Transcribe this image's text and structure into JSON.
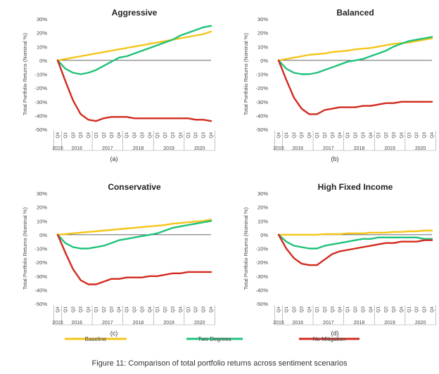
{
  "figure": {
    "caption": "Figure 11: Comparison of total portfolio returns across sentiment scenarios",
    "colors": {
      "baseline": "#f5c518",
      "two_degrees": "#1ec27a",
      "no_mitigation": "#d22a1e"
    }
  },
  "legend": [
    {
      "name": "Baseline",
      "key": "baseline"
    },
    {
      "name": "Two Degrees",
      "key": "two_degrees"
    },
    {
      "name": "No Mitigation",
      "key": "no_mitigation"
    }
  ],
  "chart_data": [
    {
      "type": "line",
      "title": "Aggressive",
      "panel_label": "(a)",
      "ylabel": "Total Portfolio Returns (Nominal %)",
      "ylim": [
        -50,
        30
      ],
      "yticks": [
        "30%",
        "20%",
        "10%",
        "0%",
        "-10%",
        "-20%",
        "-30%",
        "-40%",
        "-50%"
      ],
      "x": [
        "Q4",
        "Q1",
        "Q2",
        "Q3",
        "Q4",
        "Q1",
        "Q2",
        "Q3",
        "Q4",
        "Q1",
        "Q2",
        "Q3",
        "Q4",
        "Q1",
        "Q2",
        "Q3",
        "Q4",
        "Q1",
        "Q2",
        "Q3",
        "Q4"
      ],
      "years": [
        "2015",
        "2016",
        "2017",
        "2018",
        "2019",
        "2020"
      ],
      "series": [
        {
          "name": "Baseline",
          "key": "baseline",
          "values": [
            0,
            1,
            2,
            3,
            4,
            5,
            6,
            7,
            8,
            9,
            10,
            11,
            12,
            13,
            14,
            15,
            16,
            17,
            18,
            19,
            21
          ]
        },
        {
          "name": "Two Degrees",
          "key": "two_degrees",
          "values": [
            0,
            -6,
            -9,
            -10,
            -9,
            -7,
            -4,
            -1,
            2,
            3,
            5,
            7,
            9,
            11,
            13,
            15,
            18,
            20,
            22,
            24,
            25
          ]
        },
        {
          "name": "No Mitigation",
          "key": "no_mitigation",
          "values": [
            0,
            -15,
            -29,
            -39,
            -43,
            -44,
            -42,
            -41,
            -41,
            -41,
            -42,
            -42,
            -42,
            -42,
            -42,
            -42,
            -42,
            -42,
            -43,
            -43,
            -44
          ]
        }
      ]
    },
    {
      "type": "line",
      "title": "Balanced",
      "panel_label": "(b)",
      "ylabel": "Total Portfolio Returns (Nominal %)",
      "ylim": [
        -50,
        30
      ],
      "yticks": [
        "30%",
        "20%",
        "10%",
        "0%",
        "-10%",
        "-20%",
        "-30%",
        "-40%",
        "-50%"
      ],
      "x": [
        "Q4",
        "Q1",
        "Q2",
        "Q3",
        "Q4",
        "Q1",
        "Q2",
        "Q3",
        "Q4",
        "Q1",
        "Q2",
        "Q3",
        "Q4",
        "Q1",
        "Q2",
        "Q3",
        "Q4",
        "Q1",
        "Q2",
        "Q3",
        "Q4"
      ],
      "years": [
        "2015",
        "2016",
        "2017",
        "2018",
        "2019",
        "2020"
      ],
      "series": [
        {
          "name": "Baseline",
          "key": "baseline",
          "values": [
            0,
            1,
            2,
            3,
            4,
            4.5,
            5,
            6,
            6.5,
            7,
            8,
            8.5,
            9,
            10,
            11,
            12,
            12.5,
            13,
            14,
            15,
            16
          ]
        },
        {
          "name": "Two Degrees",
          "key": "two_degrees",
          "values": [
            0,
            -6,
            -9,
            -10,
            -10,
            -9,
            -7,
            -5,
            -3,
            -1,
            0,
            1,
            3,
            5,
            7,
            10,
            12,
            14,
            15,
            16,
            17
          ]
        },
        {
          "name": "No Mitigation",
          "key": "no_mitigation",
          "values": [
            0,
            -14,
            -27,
            -35,
            -39,
            -39,
            -36,
            -35,
            -34,
            -34,
            -34,
            -33,
            -33,
            -32,
            -31,
            -31,
            -30,
            -30,
            -30,
            -30,
            -30
          ]
        }
      ]
    },
    {
      "type": "line",
      "title": "Conservative",
      "panel_label": "(c)",
      "ylabel": "Total Portfolio Returns (Nominal %)",
      "ylim": [
        -50,
        30
      ],
      "yticks": [
        "30%",
        "20%",
        "10%",
        "0%",
        "-10%",
        "-20%",
        "-30%",
        "-40%",
        "-50%"
      ],
      "x": [
        "Q4",
        "Q1",
        "Q2",
        "Q3",
        "Q4",
        "Q1",
        "Q2",
        "Q3",
        "Q4",
        "Q1",
        "Q2",
        "Q3",
        "Q4",
        "Q1",
        "Q2",
        "Q3",
        "Q4",
        "Q1",
        "Q2",
        "Q3",
        "Q4"
      ],
      "years": [
        "2015",
        "2016",
        "2017",
        "2018",
        "2019",
        "2020"
      ],
      "series": [
        {
          "name": "Baseline",
          "key": "baseline",
          "values": [
            0,
            0.5,
            1,
            1.5,
            2,
            2.5,
            3,
            3.5,
            4,
            4.5,
            5,
            5.5,
            6,
            6.5,
            7,
            8,
            8.5,
            9,
            9.5,
            10,
            11
          ]
        },
        {
          "name": "Two Degrees",
          "key": "two_degrees",
          "values": [
            0,
            -6,
            -9,
            -10,
            -10,
            -9,
            -8,
            -6,
            -4,
            -3,
            -2,
            -1,
            0,
            1,
            3,
            5,
            6,
            7,
            8,
            9,
            10
          ]
        },
        {
          "name": "No Mitigation",
          "key": "no_mitigation",
          "values": [
            0,
            -13,
            -25,
            -33,
            -36,
            -36,
            -34,
            -32,
            -32,
            -31,
            -31,
            -31,
            -30,
            -30,
            -29,
            -28,
            -28,
            -27,
            -27,
            -27,
            -27
          ]
        }
      ]
    },
    {
      "type": "line",
      "title": "High Fixed Income",
      "panel_label": "(d)",
      "ylabel": "Total Portfolio Returns (Nominal %)",
      "ylim": [
        -50,
        30
      ],
      "yticks": [
        "30%",
        "20%",
        "10%",
        "0%",
        "-10%",
        "-20%",
        "-30%",
        "-40%",
        "-50%"
      ],
      "x": [
        "Q4",
        "Q1",
        "Q2",
        "Q3",
        "Q4",
        "Q1",
        "Q2",
        "Q3",
        "Q4",
        "Q1",
        "Q2",
        "Q3",
        "Q4",
        "Q1",
        "Q2",
        "Q3",
        "Q4",
        "Q1",
        "Q2",
        "Q3",
        "Q4"
      ],
      "years": [
        "2015",
        "2016",
        "2017",
        "2018",
        "2019",
        "2020"
      ],
      "series": [
        {
          "name": "Baseline",
          "key": "baseline",
          "values": [
            0,
            0,
            0,
            0,
            0,
            0,
            0.5,
            0.5,
            0.5,
            1,
            1,
            1,
            1.5,
            1.5,
            1.5,
            2,
            2,
            2.5,
            2.5,
            3,
            3
          ]
        },
        {
          "name": "Two Degrees",
          "key": "two_degrees",
          "values": [
            0,
            -5,
            -8,
            -9,
            -10,
            -10,
            -8,
            -7,
            -6,
            -5,
            -4,
            -3,
            -3,
            -2,
            -2,
            -2,
            -2,
            -2,
            -2,
            -3,
            -3
          ]
        },
        {
          "name": "No Mitigation",
          "key": "no_mitigation",
          "values": [
            0,
            -10,
            -17,
            -21,
            -22,
            -22,
            -18,
            -14,
            -12,
            -11,
            -10,
            -9,
            -8,
            -7,
            -6,
            -6,
            -5,
            -5,
            -5,
            -4,
            -4
          ]
        }
      ]
    }
  ]
}
